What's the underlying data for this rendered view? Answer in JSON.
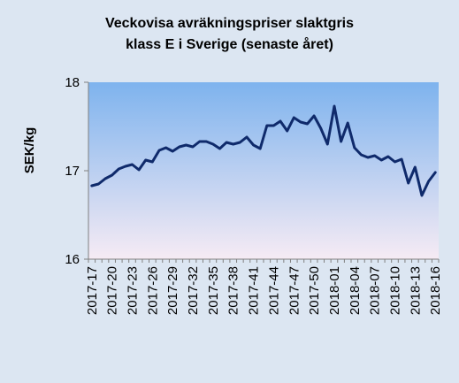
{
  "chart_data": {
    "type": "line",
    "title_lines": [
      "Veckovisa avräkningspriser slaktgris",
      "klass E i Sverige (senaste året)"
    ],
    "xlabel": "",
    "ylabel": "SEK/kg",
    "ylim": [
      16,
      18
    ],
    "yticks": [
      "16",
      "17",
      "18"
    ],
    "grid": false,
    "legend": "none",
    "colors": {
      "line": "#0f2a6b",
      "plot_top": "#7eb3ee",
      "plot_bottom": "#f6ebf4",
      "page_bg": "#dce6f2"
    },
    "x_tick_labels": [
      "2017-17",
      "2017-20",
      "2017-23",
      "2017-26",
      "2017-29",
      "2017-32",
      "2017-35",
      "2017-38",
      "2017-41",
      "2017-44",
      "2017-47",
      "2017-50",
      "2018-01",
      "2018-04",
      "2018-07",
      "2018-10",
      "2018-13",
      "2018-16"
    ],
    "series": [
      {
        "x": [
          "2017-17",
          "2017-18",
          "2017-19",
          "2017-20",
          "2017-21",
          "2017-22",
          "2017-23",
          "2017-24",
          "2017-25",
          "2017-26",
          "2017-27",
          "2017-28",
          "2017-29",
          "2017-30",
          "2017-31",
          "2017-32",
          "2017-33",
          "2017-34",
          "2017-35",
          "2017-36",
          "2017-37",
          "2017-38",
          "2017-39",
          "2017-40",
          "2017-41",
          "2017-42",
          "2017-43",
          "2017-44",
          "2017-45",
          "2017-46",
          "2017-47",
          "2017-48",
          "2017-49",
          "2017-50",
          "2017-51",
          "2017-52",
          "2018-01",
          "2018-02",
          "2018-03",
          "2018-04",
          "2018-05",
          "2018-06",
          "2018-07",
          "2018-08",
          "2018-09",
          "2018-10",
          "2018-11",
          "2018-12",
          "2018-13",
          "2018-14",
          "2018-15",
          "2018-16"
        ],
        "values": [
          16.83,
          16.85,
          16.91,
          16.95,
          17.02,
          17.05,
          17.07,
          17.01,
          17.12,
          17.1,
          17.23,
          17.26,
          17.22,
          17.27,
          17.29,
          17.27,
          17.33,
          17.33,
          17.3,
          17.25,
          17.32,
          17.3,
          17.32,
          17.38,
          17.29,
          17.25,
          17.51,
          17.51,
          17.56,
          17.45,
          17.6,
          17.55,
          17.53,
          17.62,
          17.48,
          17.3,
          17.73,
          17.33,
          17.54,
          17.26,
          17.18,
          17.15,
          17.17,
          17.12,
          17.16,
          17.1,
          17.13,
          16.86,
          17.04,
          16.72,
          16.88,
          16.98
        ]
      }
    ]
  }
}
